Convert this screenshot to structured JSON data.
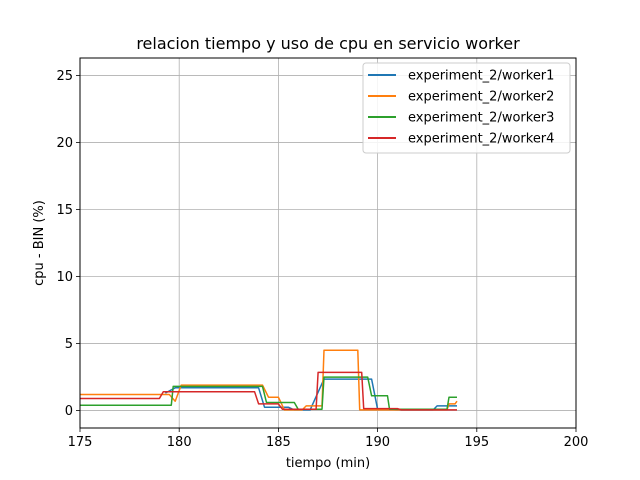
{
  "chart_data": {
    "type": "line",
    "title": "relacion tiempo y uso de cpu en servicio worker",
    "xlabel": "tiempo (min)",
    "ylabel": "cpu - BIN (%)",
    "xlim": [
      175,
      200
    ],
    "ylim": [
      -1.3,
      26.3
    ],
    "xticks": [
      175,
      180,
      185,
      190,
      195,
      200
    ],
    "yticks": [
      0,
      5,
      10,
      15,
      20,
      25
    ],
    "grid": true,
    "legend_position": "top-right",
    "series": [
      {
        "name": "experiment_2/worker1",
        "color": "#1f77b4",
        "step": true,
        "points": [
          [
            179.3,
            1.3
          ],
          [
            179.8,
            1.7
          ],
          [
            184.0,
            1.7
          ],
          [
            184.3,
            0.25
          ],
          [
            185.5,
            0.25
          ],
          [
            185.8,
            0.05
          ],
          [
            186.6,
            0.05
          ],
          [
            187.3,
            2.35
          ],
          [
            189.7,
            2.35
          ],
          [
            190.0,
            0.1
          ],
          [
            191.0,
            0.05
          ],
          [
            192.8,
            0.05
          ],
          [
            193.0,
            0.35
          ],
          [
            193.5,
            0.35
          ],
          [
            194.0,
            0.35
          ]
        ]
      },
      {
        "name": "experiment_2/worker2",
        "color": "#ff7f0e",
        "step": true,
        "points": [
          [
            175.0,
            1.2
          ],
          [
            179.5,
            1.2
          ],
          [
            179.8,
            0.7
          ],
          [
            180.1,
            1.9
          ],
          [
            184.2,
            1.9
          ],
          [
            184.5,
            1.0
          ],
          [
            185.0,
            1.0
          ],
          [
            185.3,
            0.05
          ],
          [
            186.2,
            0.05
          ],
          [
            186.4,
            0.35
          ],
          [
            187.2,
            0.35
          ],
          [
            187.3,
            4.5
          ],
          [
            189.0,
            4.5
          ],
          [
            189.1,
            0.05
          ],
          [
            193.5,
            0.05
          ],
          [
            193.6,
            0.5
          ],
          [
            193.9,
            0.5
          ],
          [
            194.0,
            0.7
          ]
        ]
      },
      {
        "name": "experiment_2/worker3",
        "color": "#2ca02c",
        "step": true,
        "points": [
          [
            175.0,
            0.4
          ],
          [
            179.6,
            0.4
          ],
          [
            179.7,
            1.8
          ],
          [
            184.2,
            1.8
          ],
          [
            184.4,
            0.6
          ],
          [
            185.8,
            0.6
          ],
          [
            186.0,
            0.1
          ],
          [
            187.2,
            0.1
          ],
          [
            187.3,
            2.5
          ],
          [
            189.5,
            2.5
          ],
          [
            189.7,
            1.1
          ],
          [
            190.5,
            1.1
          ],
          [
            190.6,
            0.1
          ],
          [
            193.5,
            0.1
          ],
          [
            193.6,
            1.0
          ],
          [
            194.0,
            1.0
          ]
        ]
      },
      {
        "name": "experiment_2/worker4",
        "color": "#d62728",
        "step": true,
        "points": [
          [
            175.0,
            0.9
          ],
          [
            179.0,
            0.9
          ],
          [
            179.2,
            1.4
          ],
          [
            183.8,
            1.4
          ],
          [
            184.0,
            0.5
          ],
          [
            185.0,
            0.5
          ],
          [
            185.2,
            0.1
          ],
          [
            186.9,
            0.1
          ],
          [
            187.0,
            2.85
          ],
          [
            189.2,
            2.85
          ],
          [
            189.3,
            0.15
          ],
          [
            191.0,
            0.15
          ],
          [
            191.2,
            0.05
          ],
          [
            194.0,
            0.05
          ]
        ]
      }
    ]
  }
}
